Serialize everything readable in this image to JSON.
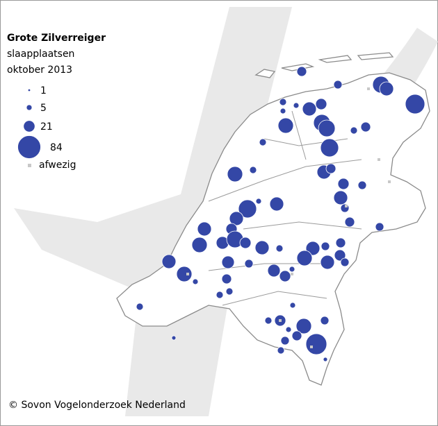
{
  "title": "Grote Zilverreiger",
  "subtitle": "slaapplaatsen",
  "date": "oktober 2013",
  "legend": {
    "items": [
      {
        "value": 1
      },
      {
        "value": 5
      },
      {
        "value": 21
      },
      {
        "value": 84
      }
    ],
    "absent": "afwezig"
  },
  "copyright": "©  Sovon Vogelonderzoek Nederland"
}
